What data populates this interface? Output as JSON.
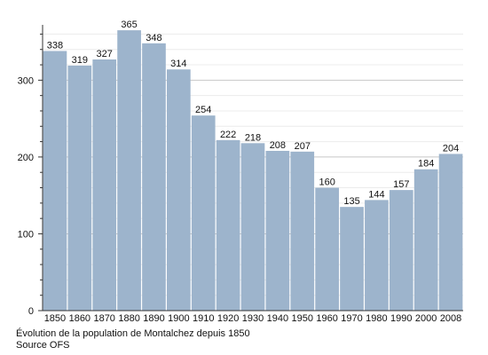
{
  "chart_data": {
    "type": "bar",
    "categories": [
      "1850",
      "1860",
      "1870",
      "1880",
      "1890",
      "1900",
      "1910",
      "1920",
      "1930",
      "1940",
      "1950",
      "1960",
      "1970",
      "1980",
      "1990",
      "2000",
      "2008"
    ],
    "values": [
      338,
      319,
      327,
      365,
      348,
      314,
      254,
      222,
      218,
      208,
      207,
      160,
      135,
      144,
      157,
      184,
      204
    ],
    "title": "",
    "xlabel": "",
    "ylabel": "",
    "ylim": [
      0,
      370
    ],
    "yticks": [
      0,
      100,
      200,
      300
    ],
    "grid": true,
    "bar_color": "#9db4cc",
    "caption": "Évolution de la population de Montalchez depuis 1850",
    "source": "Source OFS"
  }
}
